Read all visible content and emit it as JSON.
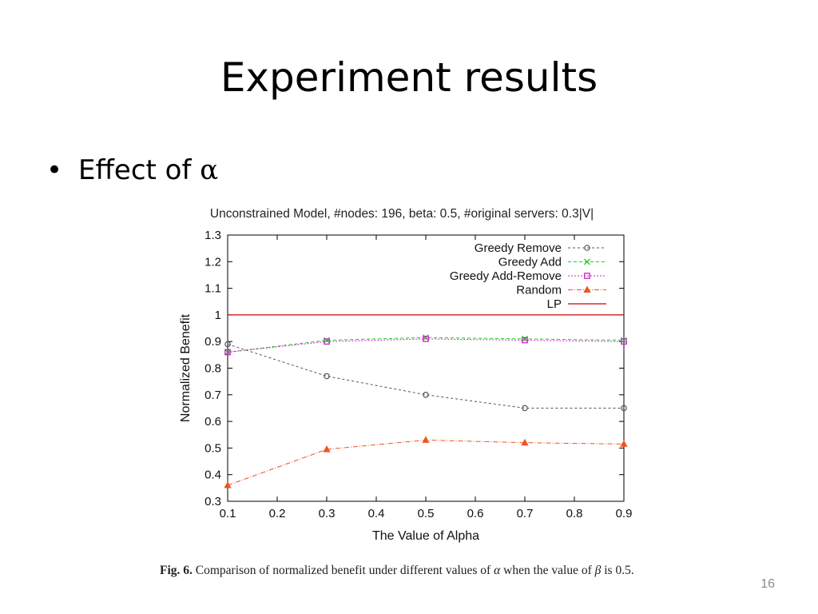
{
  "slide": {
    "title": "Experiment results",
    "bullet_marker": "•",
    "bullet_text": "Effect of ",
    "bullet_symbol": "α",
    "caption_label": "Fig. 6.",
    "caption_part1": "Comparison of normalized benefit under different values of ",
    "caption_alpha": "α",
    "caption_part2": " when the value of ",
    "caption_beta": "β",
    "caption_part3": " is 0.5.",
    "page_number": "16"
  },
  "chart_data": {
    "type": "line",
    "title": "Unconstrained Model, #nodes: 196, beta: 0.5, #original servers: 0.3|V|",
    "xlabel": "The Value of Alpha",
    "ylabel": "Normalized Benefit",
    "xlim": [
      0.1,
      0.9
    ],
    "ylim": [
      0.3,
      1.3
    ],
    "x_ticks": [
      "0.1",
      "0.2",
      "0.3",
      "0.4",
      "0.5",
      "0.6",
      "0.7",
      "0.8",
      "0.9"
    ],
    "y_ticks": [
      "0.3",
      "0.4",
      "0.5",
      "0.6",
      "0.7",
      "0.8",
      "0.9",
      "1",
      "1.1",
      "1.2",
      "1.3"
    ],
    "grid": false,
    "legend_position": "top-right",
    "x": [
      0.1,
      0.3,
      0.5,
      0.7,
      0.9
    ],
    "series": [
      {
        "name": "Greedy Remove",
        "values": [
          0.89,
          0.77,
          0.7,
          0.65,
          0.65
        ],
        "color": "#555555",
        "marker": "circle",
        "dash": "3,3"
      },
      {
        "name": "Greedy Add",
        "values": [
          0.86,
          0.905,
          0.915,
          0.91,
          0.905
        ],
        "color": "#22cc22",
        "marker": "x",
        "dash": "4,3"
      },
      {
        "name": "Greedy Add-Remove",
        "values": [
          0.86,
          0.9,
          0.91,
          0.905,
          0.9
        ],
        "color": "#cc22cc",
        "marker": "square",
        "dash": "2,2"
      },
      {
        "name": "Random",
        "values": [
          0.36,
          0.495,
          0.53,
          0.52,
          0.515
        ],
        "color": "#ee5522",
        "marker": "triangle",
        "dash": "6,2,1,2"
      },
      {
        "name": "LP",
        "values": [
          1.0,
          1.0,
          1.0,
          1.0,
          1.0
        ],
        "color": "#cc0000",
        "marker": "none",
        "dash": ""
      }
    ]
  }
}
